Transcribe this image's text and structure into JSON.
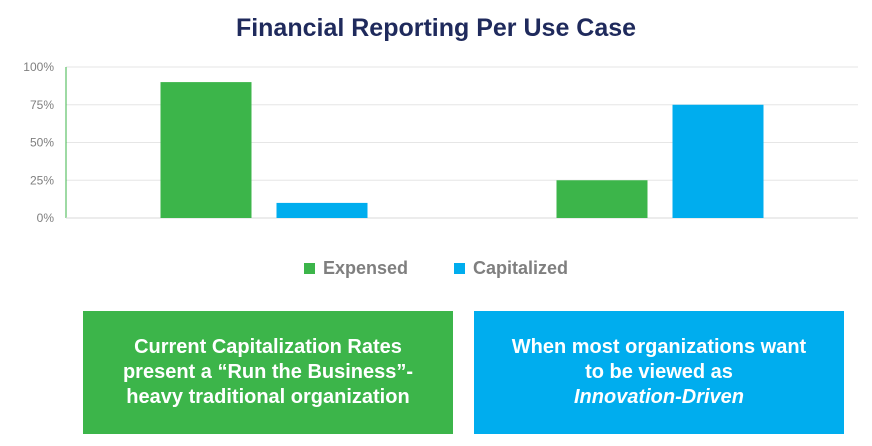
{
  "chart_data": {
    "type": "bar",
    "title": "Financial Reporting Per Use Case",
    "categories": [
      "",
      ""
    ],
    "series": [
      {
        "name": "Expensed",
        "color": "#3cb54a",
        "values": [
          90,
          25
        ]
      },
      {
        "name": "Capitalized",
        "color": "#00adee",
        "values": [
          10,
          75
        ]
      }
    ],
    "yticks": [
      "0%",
      "25%",
      "50%",
      "75%",
      "100%"
    ],
    "ylim": [
      0,
      100
    ],
    "grid": true,
    "legend": "bottom"
  },
  "callouts": {
    "left": {
      "color": "#3cb54a",
      "lines": [
        "Current Capitalization Rates",
        "present a “Run the Business”-",
        "heavy traditional organization"
      ]
    },
    "right": {
      "color": "#00adee",
      "lines": [
        "When most organizations want",
        "to be viewed  as"
      ],
      "emphasis": "Innovation-Driven"
    }
  }
}
